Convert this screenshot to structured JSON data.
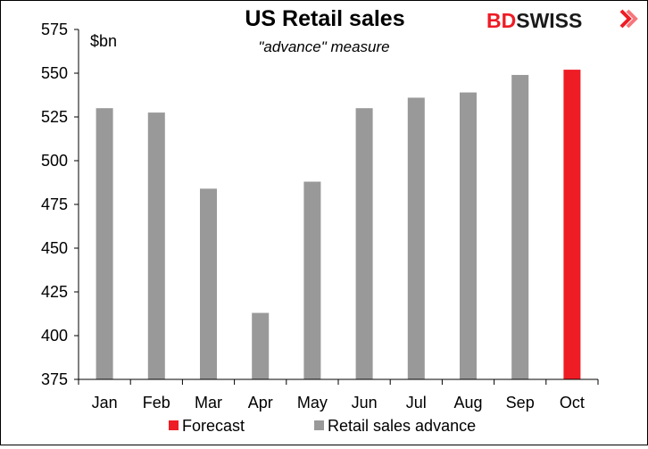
{
  "chart_data": {
    "type": "bar",
    "title": "US Retail sales",
    "subtitle": "\"advance\" measure",
    "unit_label": "$bn",
    "categories": [
      "Jan",
      "Feb",
      "Mar",
      "Apr",
      "May",
      "Jun",
      "Jul",
      "Aug",
      "Sep",
      "Oct"
    ],
    "series": [
      {
        "name": "Retail sales advance",
        "color": "#999999",
        "values": [
          530,
          527.5,
          484,
          413,
          488,
          530,
          536,
          539,
          549,
          null
        ]
      },
      {
        "name": "Forecast",
        "color": "#ee1c25",
        "values": [
          null,
          null,
          null,
          null,
          null,
          null,
          null,
          null,
          null,
          552
        ]
      }
    ],
    "ylim": [
      375,
      575
    ],
    "yticks": [
      375,
      400,
      425,
      450,
      475,
      500,
      525,
      550,
      575
    ],
    "grid": false,
    "legend": {
      "placement": "bottom",
      "entries": [
        "Forecast",
        "Retail sales advance"
      ]
    }
  },
  "brand": {
    "prefix": "BD",
    "suffix": "SWISS",
    "prefix_color": "#ee1c25",
    "suffix_color": "#1a1a1a"
  }
}
